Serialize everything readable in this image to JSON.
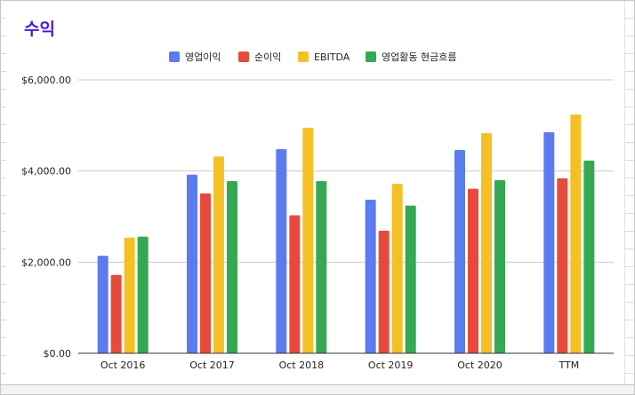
{
  "chart_data": {
    "type": "bar",
    "title": "수익",
    "categories": [
      "Oct 2016",
      "Oct 2017",
      "Oct 2018",
      "Oct 2019",
      "Oct 2020",
      "TTM"
    ],
    "series": [
      {
        "name": "영업이익",
        "color": "#5b7cf0",
        "values": [
          2140,
          3920,
          4480,
          3370,
          4460,
          4850
        ]
      },
      {
        "name": "순이익",
        "color": "#e64a3c",
        "values": [
          1720,
          3510,
          3030,
          2690,
          3610,
          3840
        ]
      },
      {
        "name": "EBITDA",
        "color": "#f4c025",
        "values": [
          2540,
          4320,
          4950,
          3720,
          4830,
          5240
        ]
      },
      {
        "name": "영업활동 현금흐름",
        "color": "#35a853",
        "values": [
          2560,
          3780,
          3780,
          3240,
          3800,
          4230
        ]
      }
    ],
    "ylim": [
      0,
      6000
    ],
    "yticks": [
      {
        "value": 0,
        "label": "$0.00"
      },
      {
        "value": 2000,
        "label": "$2,000.00"
      },
      {
        "value": 4000,
        "label": "$4,000.00"
      },
      {
        "value": 6000,
        "label": "$6,000.00"
      }
    ],
    "grid": true,
    "legend_position": "top"
  }
}
